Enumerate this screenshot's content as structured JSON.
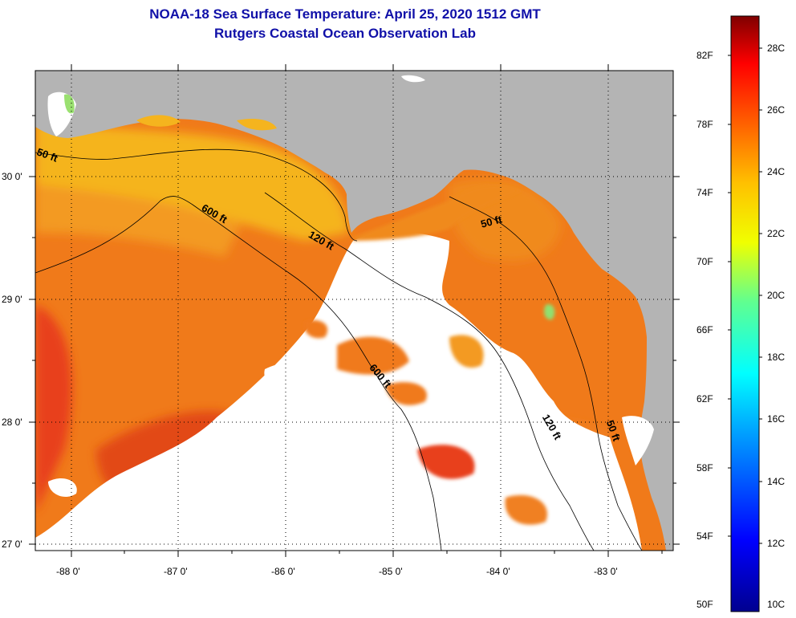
{
  "header": {
    "title_line1": "NOAA-18 Sea Surface Temperature:  April 25, 2020 1512 GMT",
    "title_line2": "Rutgers Coastal Ocean Observation Lab"
  },
  "map": {
    "lon_labels": [
      "-88 0'",
      "-87 0'",
      "-86 0'",
      "-85 0'",
      "-84 0'",
      "-83 0'"
    ],
    "lat_labels": [
      "30 0'",
      "29 0'",
      "28 0'",
      "27 0'"
    ],
    "isobaths": [
      {
        "label": "50 ft",
        "occurrence": "west"
      },
      {
        "label": "600 ft",
        "occurrence": "north"
      },
      {
        "label": "120 ft",
        "occurrence": "central"
      },
      {
        "label": "50 ft",
        "occurrence": "northeast"
      },
      {
        "label": "600 ft",
        "occurrence": "south"
      },
      {
        "label": "120 ft",
        "occurrence": "southeast"
      },
      {
        "label": "50 ft",
        "occurrence": "east"
      }
    ],
    "colors": {
      "land": "#b4b4b4",
      "cloud": "#ffffff",
      "warm_water": "#f07a1a",
      "hot_water": "#d41010",
      "shelf_water": "#f5b41e"
    }
  },
  "colorbar": {
    "fahrenheit": [
      "82F",
      "78F",
      "74F",
      "70F",
      "66F",
      "62F",
      "58F",
      "54F",
      "50F"
    ],
    "celsius": [
      "28C",
      "26C",
      "24C",
      "22C",
      "20C",
      "18C",
      "16C",
      "14C",
      "12C",
      "10C"
    ]
  }
}
